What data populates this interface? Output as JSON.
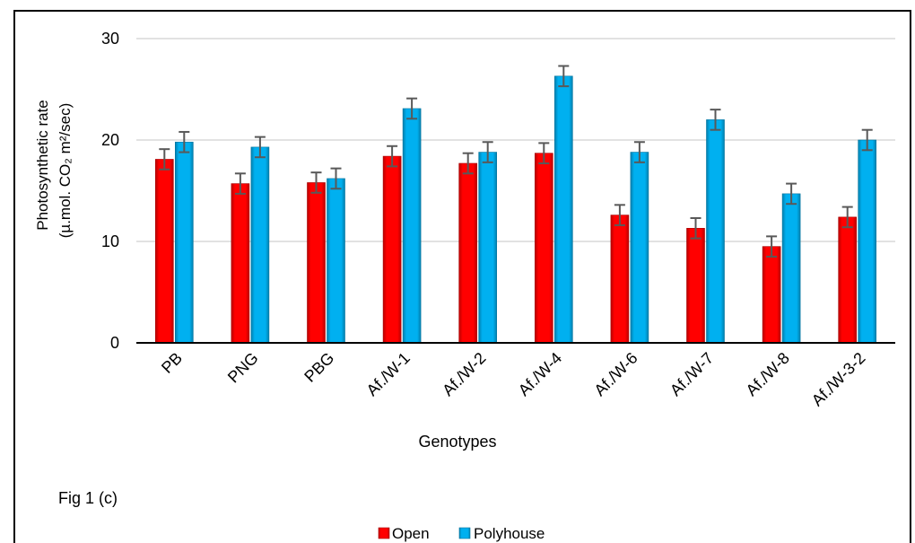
{
  "chart_data": {
    "type": "bar",
    "categories": [
      "PB",
      "PNG",
      "PBG",
      "Af./W-1",
      "Af./W-2",
      "Af./W-4",
      "Af./W-6",
      "Af./W-7",
      "Af./W-8",
      "Af./W-3-2"
    ],
    "series": [
      {
        "name": "Open",
        "color": "#FF0000",
        "values": [
          18.1,
          15.7,
          15.8,
          18.4,
          17.7,
          18.7,
          12.6,
          11.3,
          9.5,
          12.4
        ],
        "errors": [
          1.0,
          1.0,
          1.0,
          1.0,
          1.0,
          1.0,
          1.0,
          1.0,
          1.0,
          1.0
        ]
      },
      {
        "name": "Polyhouse",
        "color": "#00B0F0",
        "values": [
          19.8,
          19.3,
          16.2,
          23.1,
          18.8,
          26.3,
          18.8,
          22.0,
          14.7,
          20.0
        ],
        "errors": [
          1.0,
          1.0,
          1.0,
          1.0,
          1.0,
          1.0,
          1.0,
          1.0,
          1.0,
          1.0
        ]
      }
    ],
    "xlabel": "Genotypes",
    "ylabel": [
      "Photosynthetic rate",
      "(µ.mol. CO₂ m²/sec)"
    ],
    "ylim": [
      0,
      30
    ],
    "yticks": [
      0,
      10,
      20,
      30
    ],
    "grid": true,
    "legend": "bottom",
    "annotation": "Fig 1 (c)",
    "colors": {
      "grid": "#D9D9D9",
      "axis": "#000000",
      "error_bar": "#595959"
    }
  }
}
